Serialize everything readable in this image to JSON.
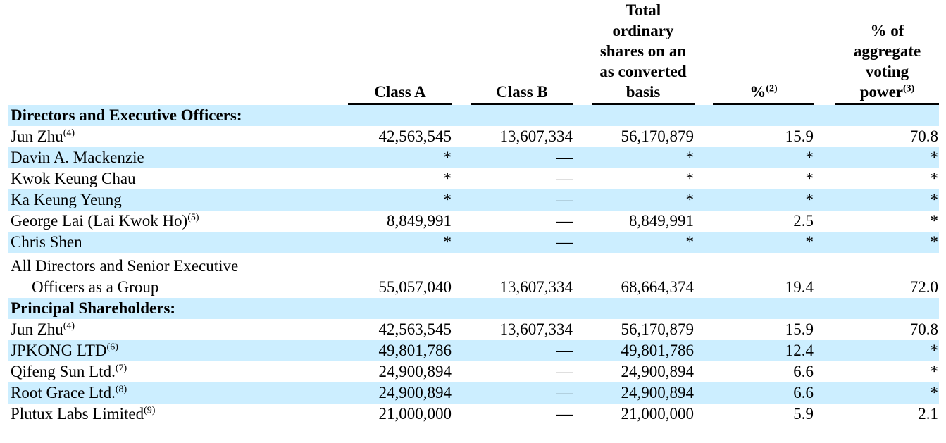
{
  "colors": {
    "row_highlight": "#cceeff",
    "text": "#000000",
    "header_rule": "#000000"
  },
  "table": {
    "columns": [
      {
        "label": "Class A",
        "sup": ""
      },
      {
        "label": "Class B",
        "sup": ""
      },
      {
        "label": "Total\nordinary\nshares on an\nas converted\nbasis",
        "sup": ""
      },
      {
        "label": "%",
        "sup": "(2)"
      },
      {
        "label": "% of\naggregate\nvoting\npower",
        "sup": "(3)"
      }
    ],
    "rows": [
      {
        "type": "section",
        "shaded": true,
        "label": "Directors and Executive Officers:"
      },
      {
        "type": "data",
        "shaded": false,
        "label": "Jun Zhu",
        "sup": "(4)",
        "cells": [
          "42,563,545",
          "13,607,334",
          "56,170,879",
          "15.9",
          "70.8"
        ]
      },
      {
        "type": "data",
        "shaded": true,
        "label": "Davin A. Mackenzie",
        "sup": "",
        "cells": [
          "*",
          "—",
          "*",
          "*",
          "*"
        ]
      },
      {
        "type": "data",
        "shaded": false,
        "label": "Kwok Keung Chau",
        "sup": "",
        "cells": [
          "*",
          "—",
          "*",
          "*",
          "*"
        ]
      },
      {
        "type": "data",
        "shaded": true,
        "label": "Ka Keung Yeung",
        "sup": "",
        "cells": [
          "*",
          "—",
          "*",
          "*",
          "*"
        ]
      },
      {
        "type": "data",
        "shaded": false,
        "label": "George Lai (Lai Kwok Ho)",
        "sup": "(5)",
        "cells": [
          "8,849,991",
          "—",
          "8,849,991",
          "2.5",
          "*"
        ]
      },
      {
        "type": "data",
        "shaded": true,
        "label": "Chris Shen",
        "sup": "",
        "cells": [
          "*",
          "—",
          "*",
          "*",
          "*"
        ]
      },
      {
        "type": "group",
        "shaded": false,
        "label_line1": "All Directors and Senior Executive",
        "label_line2": "Officers as a Group",
        "cells": [
          "55,057,040",
          "13,607,334",
          "68,664,374",
          "19.4",
          "72.0"
        ]
      },
      {
        "type": "section",
        "shaded": true,
        "label": "Principal Shareholders:"
      },
      {
        "type": "data",
        "shaded": false,
        "label": "Jun Zhu",
        "sup": "(4)",
        "cells": [
          "42,563,545",
          "13,607,334",
          "56,170,879",
          "15.9",
          "70.8"
        ]
      },
      {
        "type": "data",
        "shaded": true,
        "label": "JPKONG LTD",
        "sup": "(6)",
        "cells": [
          "49,801,786",
          "—",
          "49,801,786",
          "12.4",
          "*"
        ]
      },
      {
        "type": "data",
        "shaded": false,
        "label": "Qifeng Sun Ltd.",
        "sup": "(7)",
        "cells": [
          "24,900,894",
          "—",
          "24,900,894",
          "6.6",
          "*"
        ]
      },
      {
        "type": "data",
        "shaded": true,
        "label": "Root Grace Ltd.",
        "sup": "(8)",
        "cells": [
          "24,900,894",
          "—",
          "24,900,894",
          "6.6",
          "*"
        ]
      },
      {
        "type": "data",
        "shaded": false,
        "label": "Plutux Labs Limited",
        "sup": "(9)",
        "cells": [
          "21,000,000",
          "—",
          "21,000,000",
          "5.9",
          "2.1"
        ]
      }
    ]
  }
}
